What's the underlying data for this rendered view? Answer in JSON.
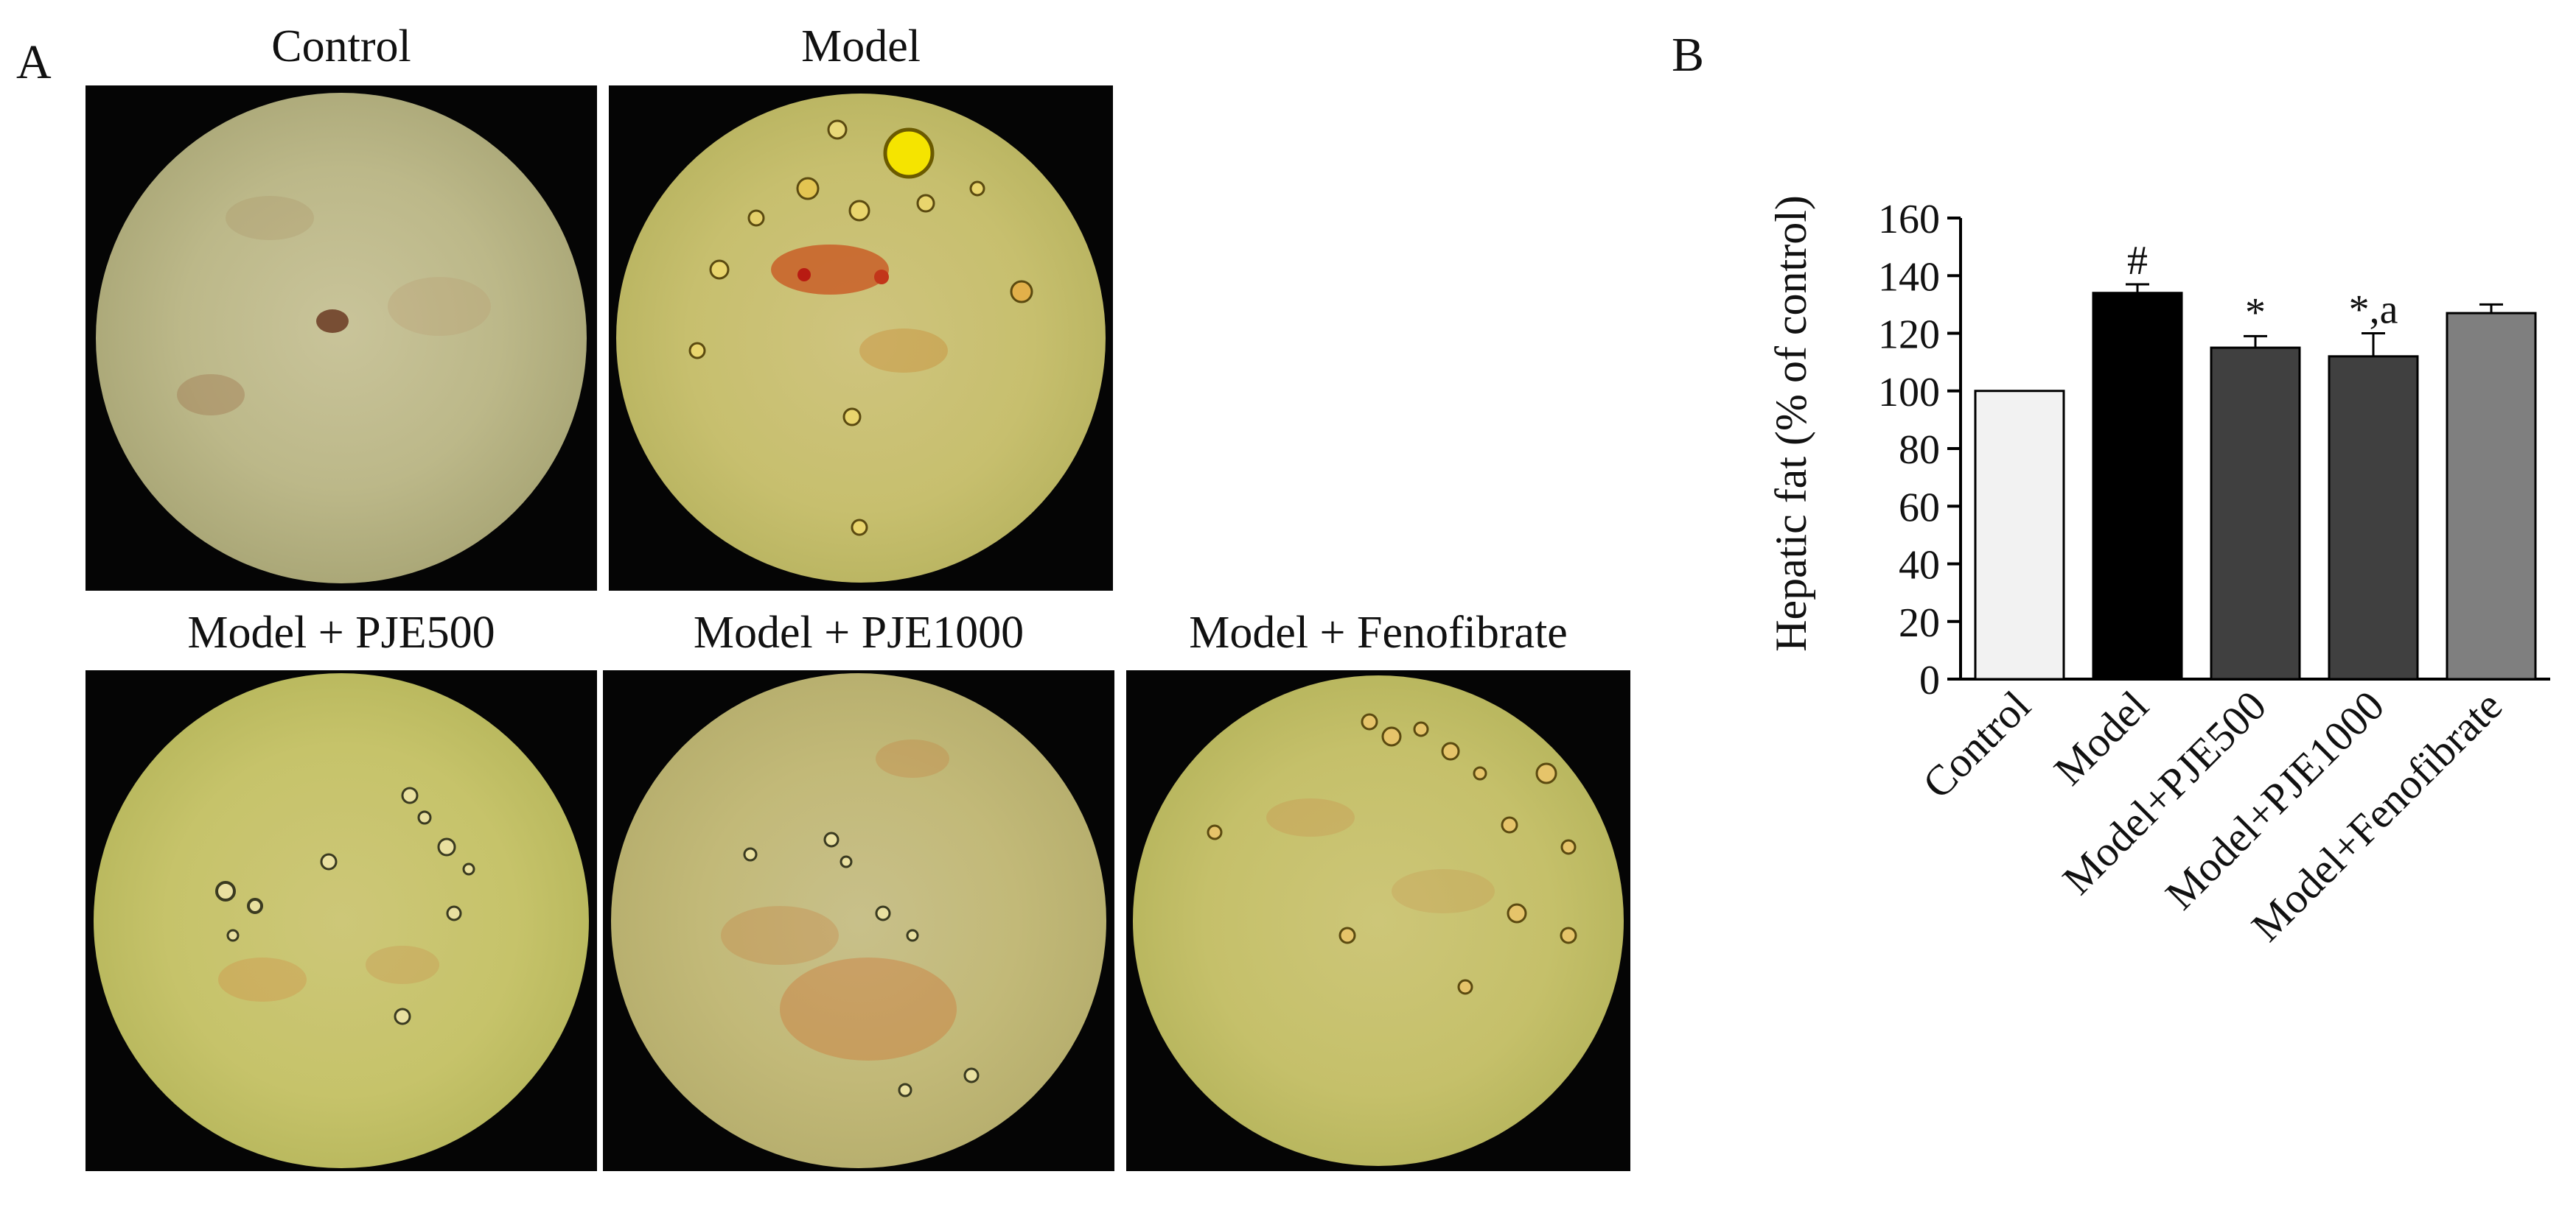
{
  "panel_a": {
    "letter": "A",
    "images": [
      {
        "label": "Control"
      },
      {
        "label": "Model"
      },
      {
        "label": "Model + PJE500"
      },
      {
        "label": "Model + PJE1000"
      },
      {
        "label": "Model + Fenofibrate"
      }
    ]
  },
  "panel_b": {
    "letter": "B"
  },
  "colors": {
    "control": "#f2f2f2",
    "model": "#000000",
    "pje500": "#404040",
    "pje1000": "#404040",
    "fenofibrate": "#7f7f7f"
  },
  "chart_data": {
    "type": "bar",
    "title": "",
    "ylabel": "Hepatic fat (% of control)",
    "xlabel": "",
    "ylim": [
      0,
      160
    ],
    "yticks": [
      0,
      20,
      40,
      60,
      80,
      100,
      120,
      140,
      160
    ],
    "categories": [
      "Control",
      "Model",
      "Model+PJE500",
      "Model+PJE1000",
      "Model+Fenofibrate"
    ],
    "values": [
      100,
      134,
      115,
      112,
      127
    ],
    "errors": [
      0,
      3,
      4,
      8,
      3
    ],
    "annotations": [
      "",
      "#",
      "*",
      "*,a",
      ""
    ]
  }
}
